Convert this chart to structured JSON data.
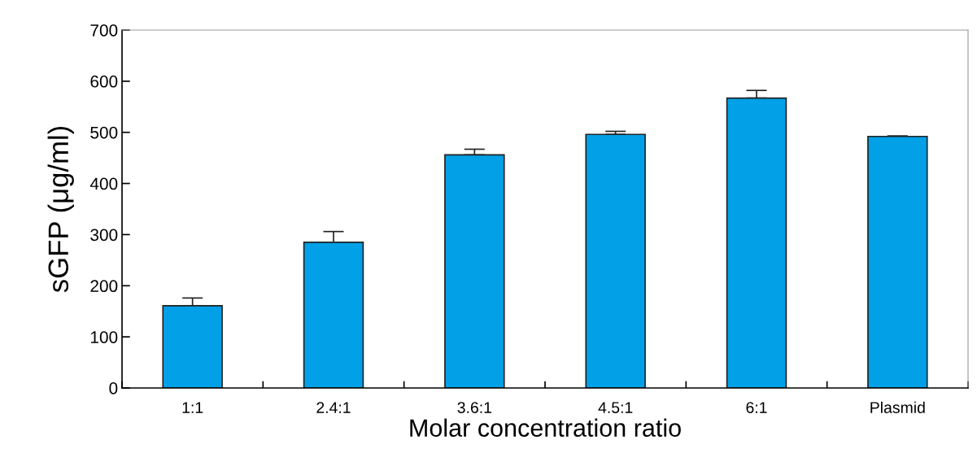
{
  "chart_data": {
    "type": "bar",
    "xlabel": "Molar concentration ratio",
    "ylabel": "sGFP (μg/ml)",
    "categories": [
      "1:1",
      "2.4:1",
      "3.6:1",
      "4.5:1",
      "6:1",
      "Plasmid"
    ],
    "values": [
      161,
      285,
      456,
      496,
      567,
      492
    ],
    "errors": [
      [
        161,
        176
      ],
      [
        285,
        306
      ],
      [
        456,
        467
      ],
      [
        496,
        502
      ],
      [
        567,
        582
      ],
      [
        492,
        493
      ]
    ],
    "color": "#02a0e6",
    "ylim": [
      0,
      700
    ],
    "yticks": [
      0,
      100,
      200,
      300,
      400,
      500,
      600,
      700
    ],
    "grid": false
  }
}
